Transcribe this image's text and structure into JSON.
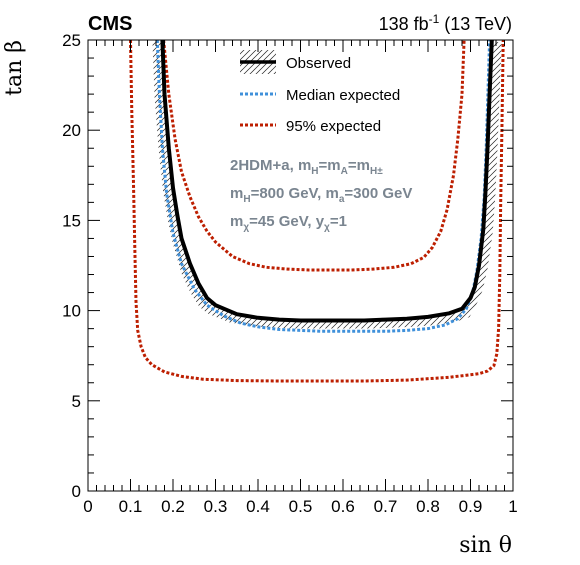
{
  "header": {
    "experiment": "CMS",
    "lumi_main": "138 fb",
    "lumi_exp": "-1",
    "lumi_energy": " (13 TeV)"
  },
  "model_text": {
    "line1": {
      "a": "2HDM+a, m",
      "a_sub": "H",
      "b": "=m",
      "b_sub": "A",
      "c": "=m",
      "c_sub": "H±"
    },
    "line2": {
      "a": "m",
      "a_sub": "H",
      "b": "=800 GeV, m",
      "b_sub": "a",
      "c": "=300 GeV"
    },
    "line3": {
      "a": "m",
      "a_sub": "χ",
      "b": "=45 GeV, y",
      "b_sub": "χ",
      "c": "=1"
    }
  },
  "chart_data": {
    "type": "line",
    "xlabel": "sin θ",
    "ylabel": "tan β",
    "xlim": [
      0,
      1
    ],
    "ylim": [
      0,
      25
    ],
    "x_ticks": [
      "0",
      "0.1",
      "0.2",
      "0.3",
      "0.4",
      "0.5",
      "0.6",
      "0.7",
      "0.8",
      "0.9",
      "1"
    ],
    "y_ticks": [
      "0",
      "5",
      "10",
      "15",
      "20",
      "25"
    ],
    "grid": false,
    "legend_position": "top-center",
    "legend": [
      {
        "label": "Observed",
        "style": "solid-hatched"
      },
      {
        "label": "Median expected",
        "style": "dotted-blue"
      },
      {
        "label": "95% expected",
        "style": "dotted-red"
      }
    ],
    "colors": {
      "observed": "#000000",
      "median": "#3f90da",
      "band95": "#bd1f01",
      "model_text": "#7a8590"
    },
    "series": [
      {
        "name": "Observed",
        "points": [
          [
            0.175,
            25
          ],
          [
            0.18,
            22
          ],
          [
            0.19,
            19
          ],
          [
            0.2,
            16.8
          ],
          [
            0.21,
            15.3
          ],
          [
            0.22,
            14
          ],
          [
            0.24,
            12.6
          ],
          [
            0.26,
            11.5
          ],
          [
            0.28,
            10.7
          ],
          [
            0.3,
            10.3
          ],
          [
            0.35,
            9.8
          ],
          [
            0.4,
            9.6
          ],
          [
            0.45,
            9.5
          ],
          [
            0.5,
            9.45
          ],
          [
            0.55,
            9.45
          ],
          [
            0.6,
            9.45
          ],
          [
            0.65,
            9.45
          ],
          [
            0.7,
            9.5
          ],
          [
            0.75,
            9.55
          ],
          [
            0.8,
            9.65
          ],
          [
            0.85,
            9.85
          ],
          [
            0.88,
            10.1
          ],
          [
            0.9,
            10.7
          ],
          [
            0.91,
            11.3
          ],
          [
            0.92,
            12.5
          ],
          [
            0.93,
            14.5
          ],
          [
            0.935,
            16.5
          ],
          [
            0.94,
            19
          ],
          [
            0.945,
            22
          ],
          [
            0.95,
            25
          ]
        ]
      },
      {
        "name": "Median expected",
        "points": [
          [
            0.163,
            25
          ],
          [
            0.168,
            22
          ],
          [
            0.175,
            19
          ],
          [
            0.185,
            16.5
          ],
          [
            0.2,
            14.3
          ],
          [
            0.22,
            12.6
          ],
          [
            0.25,
            11.2
          ],
          [
            0.28,
            10.3
          ],
          [
            0.32,
            9.7
          ],
          [
            0.36,
            9.3
          ],
          [
            0.4,
            9.1
          ],
          [
            0.45,
            8.95
          ],
          [
            0.5,
            8.9
          ],
          [
            0.55,
            8.85
          ],
          [
            0.6,
            8.85
          ],
          [
            0.65,
            8.85
          ],
          [
            0.7,
            8.85
          ],
          [
            0.75,
            8.9
          ],
          [
            0.8,
            9.0
          ],
          [
            0.84,
            9.2
          ],
          [
            0.87,
            9.55
          ],
          [
            0.89,
            10.1
          ],
          [
            0.905,
            11.0
          ],
          [
            0.915,
            12.2
          ],
          [
            0.925,
            14.0
          ],
          [
            0.932,
            16.2
          ],
          [
            0.937,
            19
          ],
          [
            0.941,
            22
          ],
          [
            0.945,
            25
          ]
        ]
      },
      {
        "name": "95% expected (upper)",
        "points": [
          [
            0.178,
            25
          ],
          [
            0.19,
            22
          ],
          [
            0.205,
            19.5
          ],
          [
            0.22,
            17.7
          ],
          [
            0.24,
            16.3
          ],
          [
            0.26,
            15.2
          ],
          [
            0.28,
            14.4
          ],
          [
            0.3,
            13.8
          ],
          [
            0.34,
            13.0
          ],
          [
            0.38,
            12.6
          ],
          [
            0.42,
            12.4
          ],
          [
            0.47,
            12.3
          ],
          [
            0.52,
            12.25
          ],
          [
            0.57,
            12.25
          ],
          [
            0.62,
            12.25
          ],
          [
            0.67,
            12.3
          ],
          [
            0.72,
            12.4
          ],
          [
            0.76,
            12.6
          ],
          [
            0.79,
            12.95
          ],
          [
            0.81,
            13.5
          ],
          [
            0.83,
            14.4
          ],
          [
            0.845,
            15.6
          ],
          [
            0.86,
            17.5
          ],
          [
            0.87,
            19.5
          ],
          [
            0.88,
            22
          ],
          [
            0.885,
            25
          ]
        ]
      },
      {
        "name": "95% expected (lower)",
        "points": [
          [
            0.1,
            25
          ],
          [
            0.103,
            21
          ],
          [
            0.107,
            17
          ],
          [
            0.11,
            13.5
          ],
          [
            0.113,
            10.5
          ],
          [
            0.117,
            8.9
          ],
          [
            0.125,
            8.0
          ],
          [
            0.135,
            7.4
          ],
          [
            0.15,
            7.0
          ],
          [
            0.18,
            6.6
          ],
          [
            0.22,
            6.35
          ],
          [
            0.27,
            6.2
          ],
          [
            0.35,
            6.12
          ],
          [
            0.45,
            6.1
          ],
          [
            0.55,
            6.1
          ],
          [
            0.65,
            6.1
          ],
          [
            0.75,
            6.15
          ],
          [
            0.85,
            6.3
          ],
          [
            0.92,
            6.5
          ],
          [
            0.94,
            6.65
          ],
          [
            0.955,
            6.95
          ],
          [
            0.962,
            7.6
          ],
          [
            0.966,
            9.0
          ],
          [
            0.969,
            12.0
          ],
          [
            0.971,
            16.0
          ],
          [
            0.974,
            20.0
          ],
          [
            0.977,
            25
          ]
        ]
      }
    ]
  }
}
